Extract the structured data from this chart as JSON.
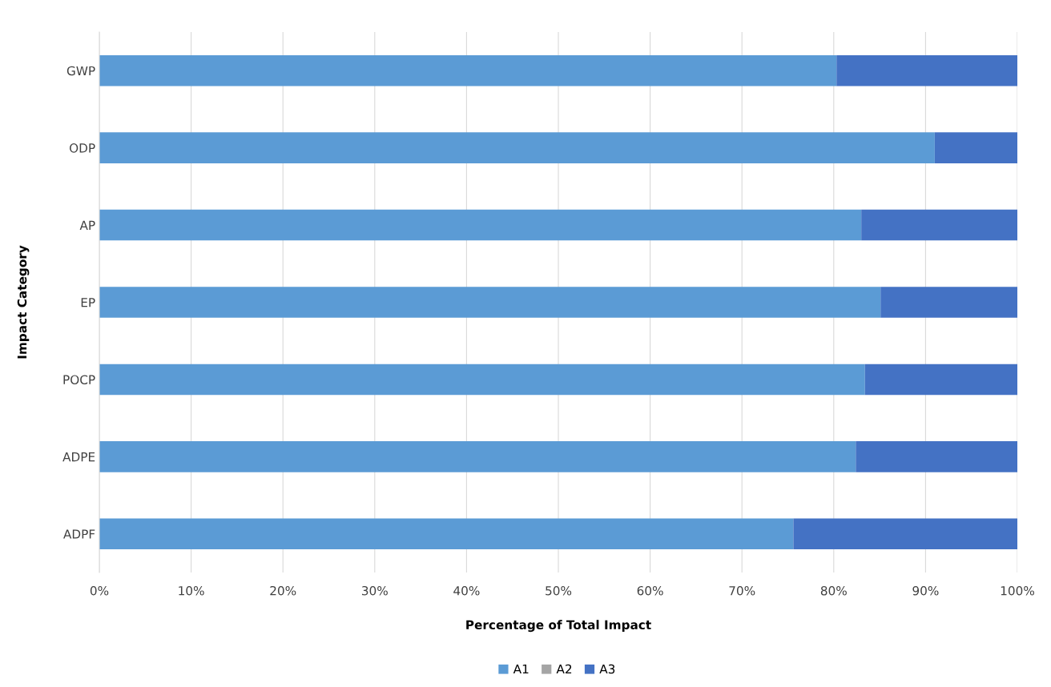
{
  "chart_data": {
    "type": "bar",
    "orientation": "horizontal",
    "stacked": true,
    "categories": [
      "GWP",
      "ODP",
      "AP",
      "EP",
      "POCP",
      "ADPE",
      "ADPF"
    ],
    "series": [
      {
        "name": "A1",
        "color": "#5b9bd5",
        "values": [
          80.3,
          91.0,
          83.0,
          85.1,
          83.4,
          82.4,
          75.6
        ]
      },
      {
        "name": "A2",
        "color": "#a5a5a5",
        "values": [
          0,
          0,
          0,
          0,
          0,
          0,
          0
        ]
      },
      {
        "name": "A3",
        "color": "#4472c4",
        "values": [
          19.7,
          9.0,
          17.0,
          14.9,
          16.6,
          17.6,
          24.4
        ]
      }
    ],
    "xlim": [
      0,
      100
    ],
    "xticks": [
      {
        "value": 0,
        "label": "0%"
      },
      {
        "value": 10,
        "label": "10%"
      },
      {
        "value": 20,
        "label": "20%"
      },
      {
        "value": 30,
        "label": "30%"
      },
      {
        "value": 40,
        "label": "40%"
      },
      {
        "value": 50,
        "label": "50%"
      },
      {
        "value": 60,
        "label": "60%"
      },
      {
        "value": 70,
        "label": "70%"
      },
      {
        "value": 80,
        "label": "80%"
      },
      {
        "value": 90,
        "label": "90%"
      },
      {
        "value": 100,
        "label": "100%"
      }
    ],
    "xlabel": "Percentage of Total Impact",
    "ylabel": "Impact Category",
    "grid": "x",
    "legend": "bottom"
  }
}
